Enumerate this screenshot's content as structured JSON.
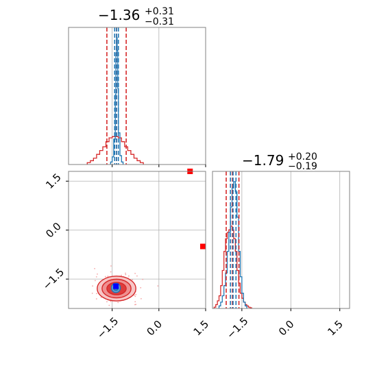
{
  "chart_data": {
    "type": "corner",
    "parameters": [
      "",
      ""
    ],
    "titles": [
      {
        "median": "−1.36",
        "plus": "+0.31",
        "minus": "−0.31"
      },
      {
        "median": "−1.79",
        "plus": "+0.20",
        "minus": "−0.19"
      }
    ],
    "axis_ranges": {
      "x0": [
        -2.9,
        1.5
      ],
      "x1": [
        -2.4,
        1.8
      ]
    },
    "ticks": [
      {
        "value": -1.5,
        "label": "−1.5"
      },
      {
        "value": 0.0,
        "label": "0.0"
      },
      {
        "value": 1.5,
        "label": "1.5"
      }
    ],
    "grid": true,
    "series": [
      {
        "name": "",
        "color": "#d62728",
        "hist_param0": {
          "bins": [
            -2.3,
            -2.2,
            -2.1,
            -2.0,
            -1.9,
            -1.8,
            -1.7,
            -1.6,
            -1.5,
            -1.4,
            -1.3,
            -1.2,
            -1.1,
            -1.0,
            -0.9,
            -0.8,
            -0.7,
            -0.6,
            -0.5
          ],
          "heights": [
            0.015,
            0.03,
            0.05,
            0.08,
            0.11,
            0.14,
            0.18,
            0.21,
            0.22,
            0.22,
            0.21,
            0.18,
            0.14,
            0.11,
            0.08,
            0.05,
            0.03,
            0.015
          ]
        },
        "quantiles_param0": [
          -1.67,
          -1.36,
          -1.05
        ],
        "hist_param1": {
          "bins": [
            -2.35,
            -2.3,
            -2.25,
            -2.2,
            -2.15,
            -2.1,
            -2.05,
            -2.0,
            -1.95,
            -1.9,
            -1.85,
            -1.8,
            -1.75,
            -1.7,
            -1.65,
            -1.6,
            -1.55,
            -1.5,
            -1.45,
            -1.4,
            -1.35,
            -1.3,
            -1.25,
            -1.2
          ],
          "heights": [
            0.01,
            0.03,
            0.06,
            0.1,
            0.18,
            0.3,
            0.45,
            0.55,
            0.6,
            0.62,
            0.65,
            0.62,
            0.55,
            0.45,
            0.3,
            0.2,
            0.12,
            0.08,
            0.05,
            0.03,
            0.02,
            0.01,
            0.005
          ]
        },
        "quantiles_param1": [
          -1.98,
          -1.79,
          -1.59
        ],
        "contour_center": [
          -1.36,
          -1.79
        ],
        "contour_sigma": [
          0.31,
          0.19
        ],
        "markers": [
          [
            1.0,
            1.8
          ],
          [
            1.5,
            -0.5
          ]
        ]
      },
      {
        "name": "",
        "color": "#1f77b4",
        "hist_param0": {
          "bins": [
            -1.55,
            -1.5,
            -1.45,
            -1.4,
            -1.38,
            -1.36,
            -1.34,
            -1.32,
            -1.3,
            -1.25,
            -1.2,
            -1.15
          ],
          "heights": [
            0.02,
            0.06,
            0.2,
            0.55,
            0.88,
            1.0,
            0.9,
            0.6,
            0.25,
            0.07,
            0.02
          ]
        },
        "quantiles_param0": [
          -1.42,
          -1.36,
          -1.3
        ],
        "hist_param1": {
          "bins": [
            -2.2,
            -2.15,
            -2.1,
            -2.05,
            -2.0,
            -1.95,
            -1.9,
            -1.85,
            -1.8,
            -1.75,
            -1.7,
            -1.65,
            -1.6,
            -1.55,
            -1.5,
            -1.45,
            -1.4,
            -1.35
          ],
          "heights": [
            0.02,
            0.05,
            0.1,
            0.18,
            0.28,
            0.45,
            0.6,
            0.8,
            0.95,
            1.0,
            0.92,
            0.72,
            0.45,
            0.25,
            0.12,
            0.05,
            0.02
          ]
        },
        "quantiles_param1": [
          -1.85,
          -1.77,
          -1.68
        ],
        "contour_center": [
          -1.38,
          -1.77
        ],
        "contour_sigma": [
          0.09,
          0.09
        ],
        "markers": [
          [
            -1.38,
            -1.72
          ]
        ]
      }
    ]
  }
}
